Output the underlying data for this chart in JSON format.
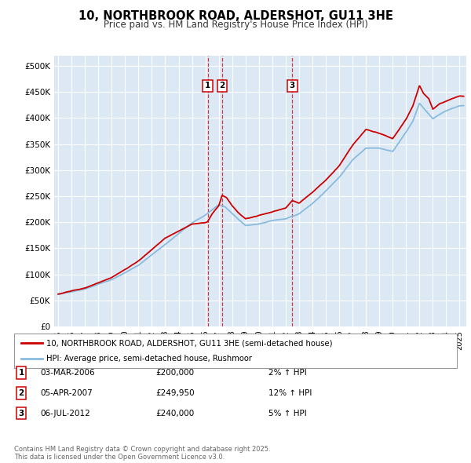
{
  "title": "10, NORTHBROOK ROAD, ALDERSHOT, GU11 3HE",
  "subtitle": "Price paid vs. HM Land Registry's House Price Index (HPI)",
  "background_color": "#dce9f5",
  "plot_bg_color": "#dce9f5",
  "ylim": [
    0,
    520000
  ],
  "yticks": [
    0,
    50000,
    100000,
    150000,
    200000,
    250000,
    300000,
    350000,
    400000,
    450000,
    500000
  ],
  "ytick_labels": [
    "£0",
    "£50K",
    "£100K",
    "£150K",
    "£200K",
    "£250K",
    "£300K",
    "£350K",
    "£400K",
    "£450K",
    "£500K"
  ],
  "xlim_start": 1994.7,
  "xlim_end": 2025.5,
  "xticks": [
    1995,
    1996,
    1997,
    1998,
    1999,
    2000,
    2001,
    2002,
    2003,
    2004,
    2005,
    2006,
    2007,
    2008,
    2009,
    2010,
    2011,
    2012,
    2013,
    2014,
    2015,
    2016,
    2017,
    2018,
    2019,
    2020,
    2021,
    2022,
    2023,
    2024,
    2025
  ],
  "transaction_markers": [
    {
      "num": 1,
      "year": 2006.17,
      "price": 200000,
      "label": "03-MAR-2006",
      "amount": "£200,000",
      "pct": "2% ↑ HPI"
    },
    {
      "num": 2,
      "year": 2007.25,
      "price": 249950,
      "label": "05-APR-2007",
      "amount": "£249,950",
      "pct": "12% ↑ HPI"
    },
    {
      "num": 3,
      "year": 2012.5,
      "price": 240000,
      "label": "06-JUL-2012",
      "amount": "£240,000",
      "pct": "5% ↑ HPI"
    }
  ],
  "legend_line1": "10, NORTHBROOK ROAD, ALDERSHOT, GU11 3HE (semi-detached house)",
  "legend_line2": "HPI: Average price, semi-detached house, Rushmoor",
  "footnote": "Contains HM Land Registry data © Crown copyright and database right 2025.\nThis data is licensed under the Open Government Licence v3.0.",
  "line_color_price": "#cc0000",
  "line_color_hpi": "#88bbdd",
  "grid_color": "#ffffff",
  "vline_color": "#cc0000"
}
